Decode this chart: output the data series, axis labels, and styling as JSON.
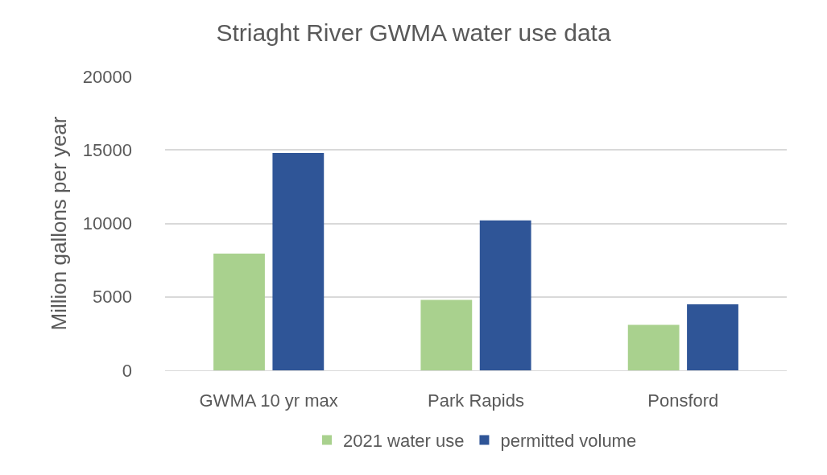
{
  "chart_data": {
    "type": "bar",
    "title": "Striaght River GWMA water use data",
    "ylabel": "Million gallons per year",
    "categories": [
      "GWMA 10 yr max",
      "Park Rapids",
      "Ponsford"
    ],
    "series": [
      {
        "name": "2021 water use",
        "color": "#a9d18e",
        "values": [
          7950,
          4800,
          3100
        ]
      },
      {
        "name": "permitted volume",
        "color": "#2f5597",
        "values": [
          14800,
          10200,
          4500
        ]
      }
    ],
    "ylim": [
      0,
      20000
    ],
    "yticks": [
      0,
      5000,
      10000,
      15000,
      20000
    ],
    "grid": "y",
    "legend": "bottom"
  }
}
